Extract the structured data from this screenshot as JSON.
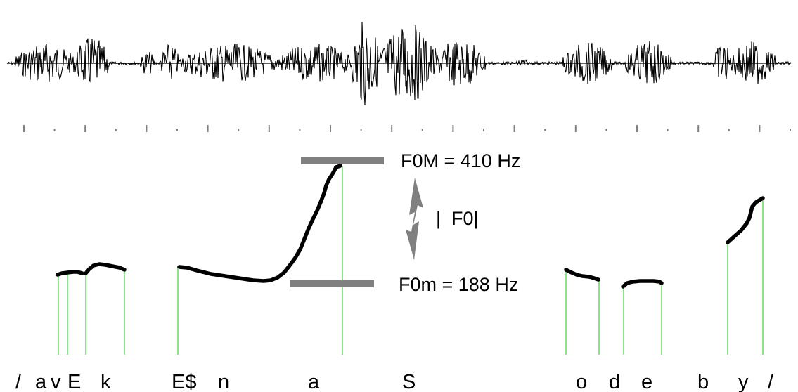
{
  "f0_max_label": "F0M = 410 Hz",
  "f0_min_label": "F0m = 188 Hz",
  "delta_f0_label": "|  F0|",
  "phonemes": [
    "/",
    "a",
    "v",
    "E",
    "k",
    "E$",
    "n",
    "a",
    "S",
    "o",
    "d",
    "e",
    "b",
    "y",
    "/"
  ],
  "colors": {
    "waveform": "#000000",
    "f0_contour": "#000000",
    "boundary_lines": "#8fe08f",
    "range_bars": "#808080",
    "arrow": "#808080"
  },
  "icons": {
    "delta_arrow": "double-headed-arrow"
  }
}
